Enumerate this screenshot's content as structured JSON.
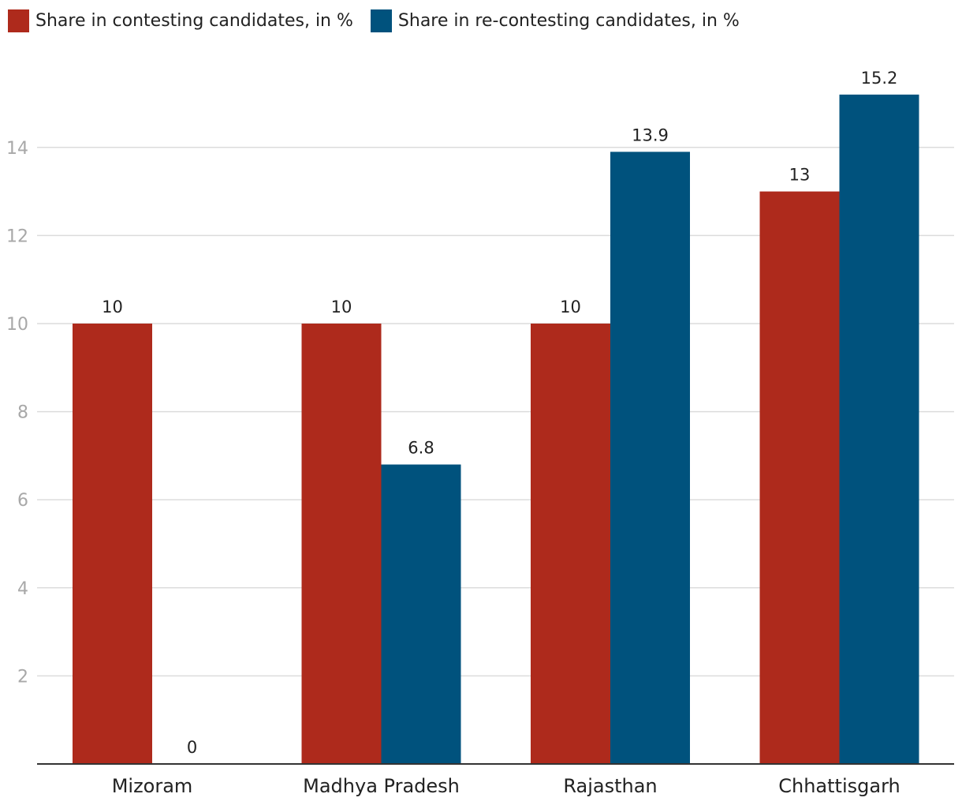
{
  "chart_data": {
    "type": "bar",
    "categories": [
      "Mizoram",
      "Madhya Pradesh",
      "Rajasthan",
      "Chhattisgarh"
    ],
    "series": [
      {
        "name": "Share in contesting candidates, in %",
        "color": "#ae2a1c",
        "values": [
          10,
          10,
          10,
          13
        ],
        "labels": [
          "10",
          "10",
          "10",
          "13"
        ]
      },
      {
        "name": "Share in re-contesting candidates, in %",
        "color": "#00527d",
        "values": [
          0,
          6.8,
          13.9,
          15.2
        ],
        "labels": [
          "0",
          "6.8",
          "13.9",
          "15.2"
        ]
      }
    ],
    "yticks": [
      2,
      4,
      6,
      8,
      10,
      12,
      14
    ],
    "ylim": [
      0,
      16
    ],
    "grid": true,
    "legend_position": "top-left",
    "title": "",
    "xlabel": "",
    "ylabel": ""
  }
}
